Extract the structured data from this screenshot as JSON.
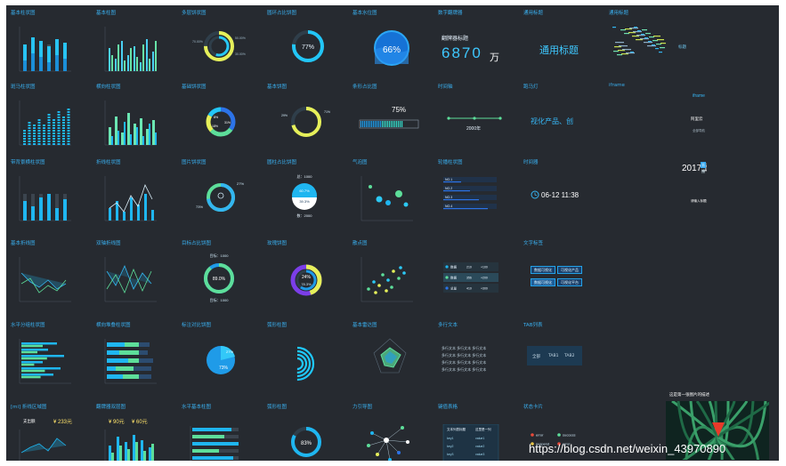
{
  "titles": [
    [
      "基本柱状图",
      "基本柱图",
      "多层饼状图",
      "圆环占比饼图",
      "基本水位图",
      "数字翻牌器",
      "通用标题",
      "通用标题"
    ],
    [
      "斑马柱状图",
      "横向柱状图",
      "基础饼状图",
      "基本饼图",
      "条形占比图",
      "时间轴",
      "跑马灯",
      "iframe"
    ],
    [
      "带背景横柱状图",
      "折线柱状图",
      "图片饼状图",
      "圆柱占比饼图",
      "气泡图",
      "轮播柱状图",
      "时间器",
      ""
    ],
    [
      "基本折线图",
      "双轴折线图",
      "目标占比饼图",
      "玫瑰饼图",
      "散点图",
      "",
      "文字标签",
      ""
    ],
    [
      "水平分组柱状图",
      "横向堆叠柱状图",
      "标注对比饼图",
      "弧形柱图",
      "基本雷达图",
      "多行文本",
      "TAB列表",
      ""
    ],
    [
      "[mi] 折线区域图",
      "翻牌器双层图",
      "水平基本柱图",
      "弧形柱图",
      "力引导图",
      "键值表格",
      "状态卡片",
      ""
    ]
  ],
  "texts": {
    "ring_pct": "77%",
    "water_pct": "66%",
    "flip_label": "翻牌器标题",
    "flip_value": "6870",
    "flip_unit": "万",
    "general_title": "通用标题",
    "wordcloud_label": "标题",
    "progress_pct": "75%",
    "timeline_year": "2000年",
    "marquee": "视化产品、创",
    "iframe_label": "iframe",
    "iframe_logo": "阿里云",
    "iframe_menu": [
      "全部导航",
      "产品",
      "解决方案",
      "云市场"
    ],
    "scroll_title": "2017上海云栖大会",
    "scroll_badge": "直播",
    "scroll_sub": "请输入标题进行搜索，提示：请ctrl全局搜索进行",
    "timer": "06-12 11:38",
    "col_pie_top": "总：1000",
    "col_pie_pct1": "60.7%",
    "col_pie_pct2": "39.3%",
    "col_pie_bottom": "数：2000",
    "target_top": "目标：1000",
    "target_pct": "89.0%",
    "target_bottom": "目标：1000",
    "rose_pct": "24%",
    "rose_pct2": "78.3%",
    "img_pie_pct": "73%",
    "label_pie_a": "27%",
    "label_pie_b": "73%",
    "arc_pct": "83%",
    "area_legend": "支出额",
    "area_value": "¥ 233元",
    "flip2_a": "¥ 90元",
    "flip2_b": "¥ 60元",
    "tags": [
      "数据可视化",
      "可视化产品",
      "数据可视化",
      "可视化平台"
    ],
    "tabs": [
      "全部",
      "TAB1",
      "TAB2"
    ],
    "multi_text": [
      "多行文本 多行文本 多行文本",
      "多行文本 多行文本 多行文本",
      "多行文本 多行文本 多行文本",
      "多行文本 多行文本 多行文本"
    ],
    "kv_headers": [
      "文本列表标题",
      "这里是一列"
    ],
    "kv_rows": [
      [
        "key1",
        "value1"
      ],
      [
        "key2",
        "value2"
      ],
      [
        "key3",
        "value3"
      ]
    ],
    "status": [
      "error",
      "success",
      "suspend",
      "error"
    ],
    "rotate_rows": [
      "NO.1",
      "NO.2",
      "NO.3",
      "NO.4"
    ],
    "carousel_title": "这是第一张图片的描述",
    "legend_rows": [
      [
        "数据",
        "210",
        "+100"
      ],
      [
        "数据",
        "356",
        "+200"
      ],
      [
        "总量",
        "410",
        "+300"
      ]
    ],
    "watermark": "https://blog.csdn.net/weixin_43970890"
  },
  "colors": {
    "bg": "#262a30",
    "accent": "#3ab0f0",
    "cyan": "#1fc9ff",
    "green": "#5dde9a",
    "yellow": "#e6f05a",
    "blue": "#2c73e8"
  }
}
